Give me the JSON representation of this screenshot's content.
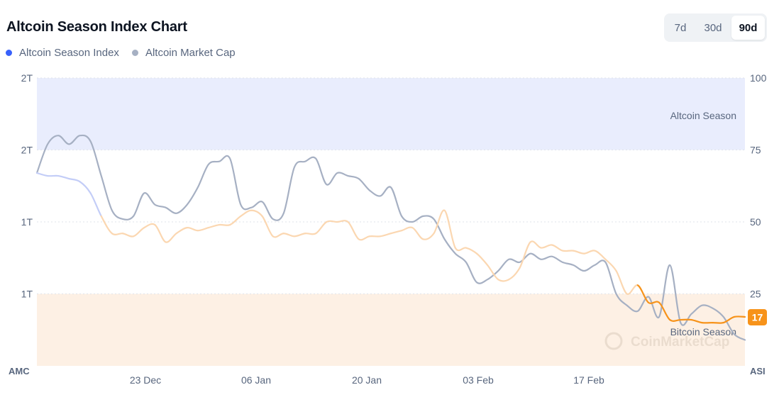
{
  "header": {
    "title": "Altcoin Season Index Chart"
  },
  "legend": [
    {
      "label": "Altcoin Season Index",
      "color": "#3861fb"
    },
    {
      "label": "Altcoin Market Cap",
      "color": "#a6b0c3"
    }
  ],
  "range_selector": {
    "options": [
      "7d",
      "30d",
      "90d"
    ],
    "selected": "90d"
  },
  "watermark": "CoinMarketCap",
  "colors": {
    "altcoin_zone": "#e9edfd",
    "bitcoin_zone": "#fdf0e4",
    "index_bitcoin": "#f7931a",
    "index_neutral": "#fbd7b1",
    "index_altcoin_side": "#c3cdf7",
    "market_cap": "#a6b0c3",
    "current_badge": "#f7931a"
  },
  "chart_data": {
    "type": "line",
    "title": "Altcoin Season Index Chart",
    "x_ticks": [
      "23 Dec",
      "06 Jan",
      "20 Jan",
      "03 Feb",
      "17 Feb"
    ],
    "left_axis": {
      "label": "AMC",
      "ticks": [
        "2T",
        "2T",
        "1T",
        "1T"
      ]
    },
    "right_axis": {
      "label": "ASI",
      "ticks": [
        "100",
        "75",
        "50",
        "25"
      ],
      "ylim": [
        0,
        100
      ]
    },
    "zones": [
      {
        "name": "Altcoin Season",
        "from": 75,
        "to": 100
      },
      {
        "name": "Bitcoin Season",
        "from": 0,
        "to": 25
      }
    ],
    "current_value": "17",
    "series": [
      {
        "name": "Altcoin Season Index",
        "axis": "right",
        "values": [
          67,
          66,
          66,
          65,
          64,
          60,
          52,
          46,
          46,
          45,
          48,
          49,
          43,
          46,
          48,
          47,
          48,
          49,
          49,
          52,
          54,
          52,
          45,
          46,
          45,
          46,
          46,
          50,
          50,
          50,
          44,
          45,
          45,
          46,
          47,
          48,
          44,
          46,
          54,
          41,
          41,
          39,
          35,
          30,
          30,
          34,
          43,
          41,
          42,
          40,
          40,
          39,
          40,
          37,
          33,
          25,
          28,
          22,
          22,
          16,
          16,
          16,
          15,
          15,
          15,
          17,
          17
        ]
      },
      {
        "name": "Altcoin Market Cap",
        "axis": "left",
        "values": [
          67,
          77,
          80,
          77,
          80,
          78,
          66,
          54,
          51,
          52,
          60,
          56,
          55,
          53,
          56,
          62,
          70,
          71,
          72,
          56,
          55,
          57,
          51,
          53,
          69,
          71,
          72,
          63,
          67,
          66,
          65,
          61,
          59,
          62,
          52,
          50,
          52,
          51,
          44,
          39,
          36,
          29,
          30,
          33,
          37,
          36,
          39,
          37,
          38,
          36,
          35,
          33,
          35,
          36,
          25,
          21,
          19,
          24,
          17,
          35,
          15,
          18,
          21,
          20,
          17,
          11,
          9
        ]
      }
    ]
  }
}
